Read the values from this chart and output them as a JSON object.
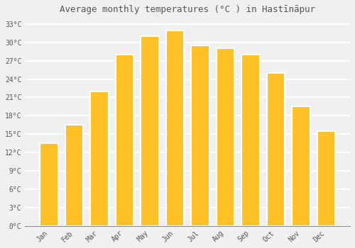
{
  "title": "Average monthly temperatures (°C ) in Hastīnāpur",
  "months": [
    "Jan",
    "Feb",
    "Mar",
    "Apr",
    "May",
    "Jun",
    "Jul",
    "Aug",
    "Sep",
    "Oct",
    "Nov",
    "Dec"
  ],
  "temperatures": [
    13.5,
    16.5,
    22,
    28,
    31,
    32,
    29.5,
    29,
    28,
    25,
    19.5,
    15.5
  ],
  "bar_color": "#FFC125",
  "bar_edge_color": "#E8A000",
  "background_color": "#F0F0F0",
  "grid_color": "#FFFFFF",
  "text_color": "#555555",
  "ylim": [
    0,
    34
  ],
  "yticks": [
    0,
    3,
    6,
    9,
    12,
    15,
    18,
    21,
    24,
    27,
    30,
    33
  ],
  "ytick_labels": [
    "0°C",
    "3°C",
    "6°C",
    "9°C",
    "12°C",
    "15°C",
    "18°C",
    "21°C",
    "24°C",
    "27°C",
    "30°C",
    "33°C"
  ],
  "title_fontsize": 9,
  "tick_fontsize": 7,
  "bar_width": 0.72,
  "bar_gap_color": "#FFFFFF"
}
